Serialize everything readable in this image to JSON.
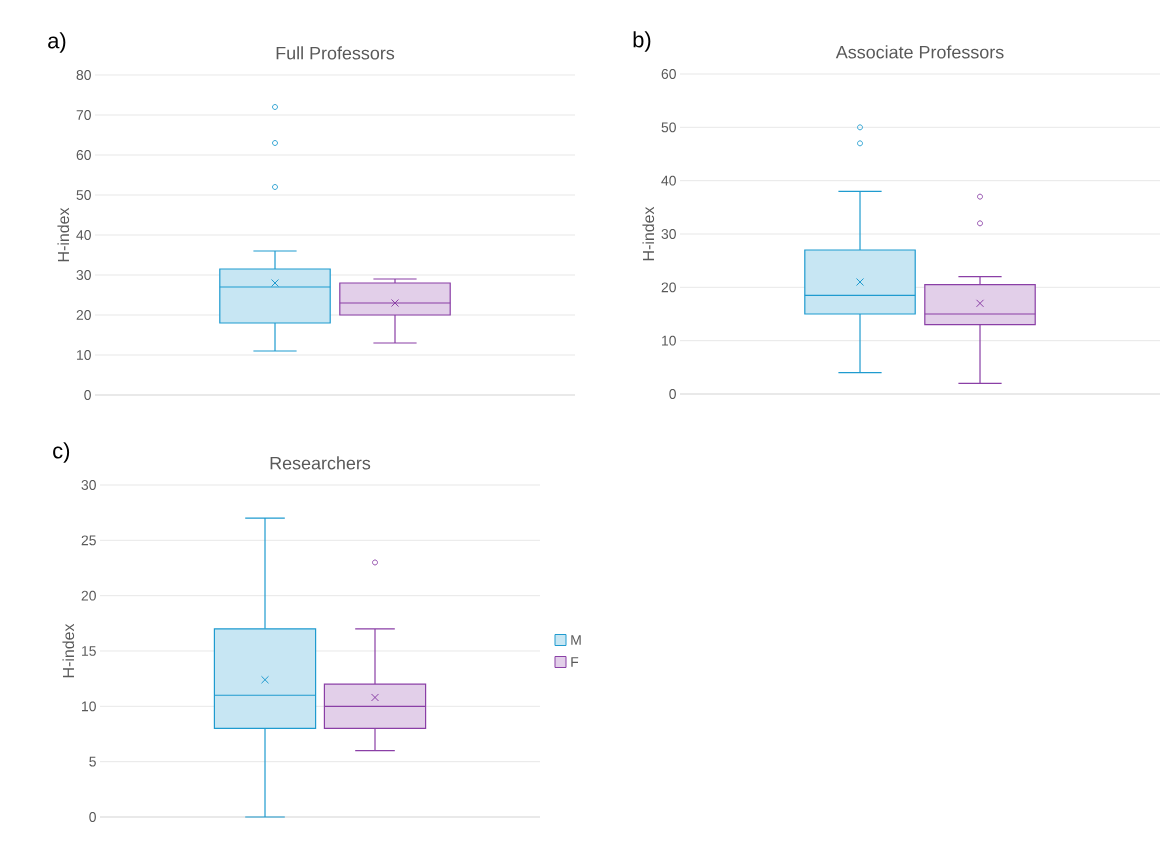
{
  "chart_data": [
    {
      "type": "box",
      "title": "Full Professors",
      "ylabel": "H-index",
      "annotations": [
        "a)"
      ],
      "categories": [
        null
      ],
      "ylim": [
        0,
        80
      ],
      "yticks": [
        0,
        10,
        20,
        30,
        40,
        50,
        60,
        70,
        80
      ],
      "grid": "y",
      "tick_labels": "y",
      "series": [
        {
          "color": "#1f9bcf",
          "boxes": [
            {
              "low": 11,
              "q1": 18,
              "median": 27,
              "q3": 31.5,
              "high": 36,
              "mean": 28,
              "outliers": [
                52,
                63,
                72
              ]
            }
          ]
        },
        {
          "color": "#8a3fa6",
          "boxes": [
            {
              "low": 13,
              "q1": 20,
              "median": 23,
              "q3": 28,
              "high": 29,
              "mean": 23
            }
          ]
        }
      ]
    },
    {
      "type": "box",
      "title": "Associate Professors",
      "ylabel": "H-index",
      "annotations": [
        "b)"
      ],
      "categories": [
        null
      ],
      "ylim": [
        0,
        60
      ],
      "yticks": [
        0,
        10,
        20,
        30,
        40,
        50,
        60
      ],
      "grid": "y",
      "tick_labels": "y",
      "series": [
        {
          "color": "#1f9bcf",
          "boxes": [
            {
              "low": 4,
              "q1": 15,
              "median": 18.5,
              "q3": 27,
              "high": 38,
              "mean": 21,
              "outliers": [
                47,
                50
              ]
            }
          ]
        },
        {
          "color": "#8a3fa6",
          "boxes": [
            {
              "low": 2,
              "q1": 13,
              "median": 15,
              "q3": 20.5,
              "high": 22,
              "mean": 17,
              "outliers": [
                32,
                37
              ]
            }
          ]
        }
      ]
    },
    {
      "type": "box",
      "title": "Researchers",
      "ylabel": "H-index",
      "annotations": [
        "c)"
      ],
      "categories": [
        null
      ],
      "ylim": [
        0,
        30
      ],
      "yticks": [
        0,
        5,
        10,
        15,
        20,
        25,
        30
      ],
      "grid": "y",
      "tick_labels": "y",
      "legend": "right",
      "series": [
        {
          "name": "M",
          "color": "#1f9bcf",
          "boxes": [
            {
              "low": 0,
              "q1": 8,
              "median": 11,
              "q3": 17,
              "high": 27,
              "mean": 12.4
            }
          ]
        },
        {
          "name": "F",
          "color": "#8a3fa6",
          "boxes": [
            {
              "low": 6,
              "q1": 8,
              "median": 10,
              "q3": 12,
              "high": 17,
              "mean": 10.8,
              "outliers": [
                23
              ]
            }
          ]
        }
      ]
    }
  ]
}
